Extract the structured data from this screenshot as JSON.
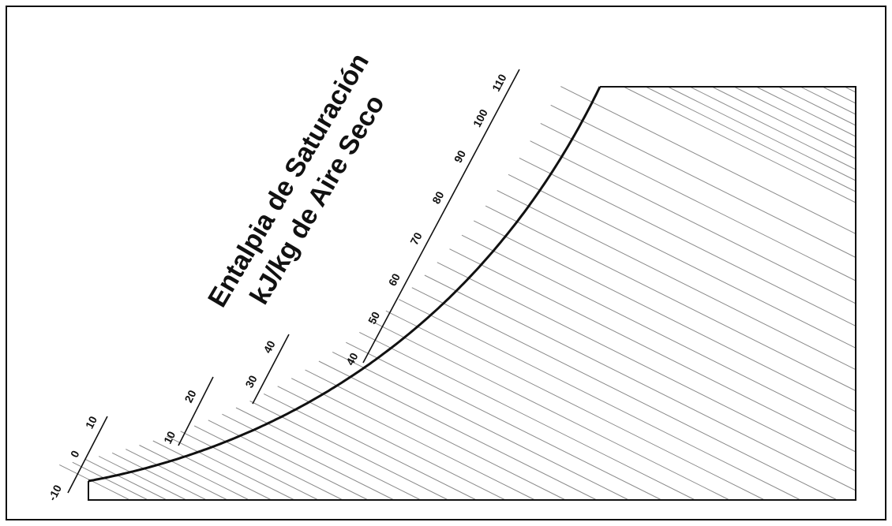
{
  "title": {
    "line1": "Entalpia de Saturación",
    "line2": "kJ/kg de Aire Seco"
  },
  "scale_labels": [
    "-10",
    "0",
    "10",
    "10",
    "20",
    "30",
    "40",
    "40",
    "50",
    "60",
    "70",
    "80",
    "90",
    "100",
    "110"
  ],
  "colors": {
    "background": "#ffffff",
    "frame": "#111111",
    "curve": "#111111",
    "hatch": "#777777"
  }
}
